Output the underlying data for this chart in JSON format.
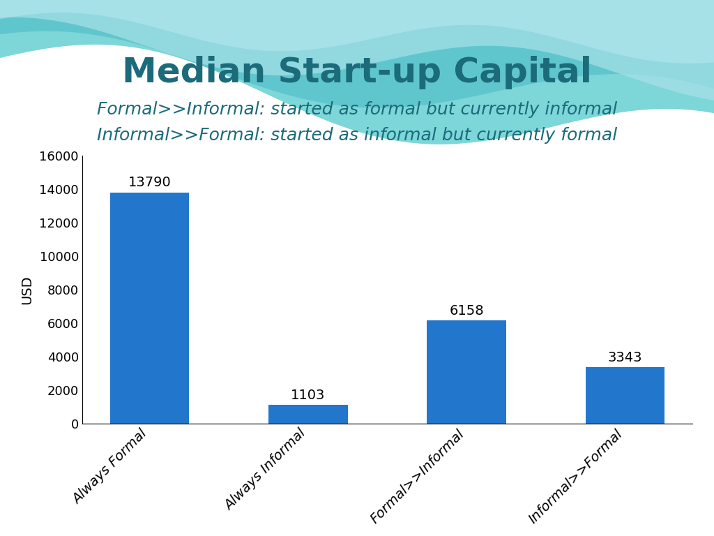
{
  "title": "Median Start-up Capital",
  "subtitle_line1_bold": "Formal>>Informal",
  "subtitle_line1_rest": ": started as formal but currently informal",
  "subtitle_line2_bold": "Informal>>Formal",
  "subtitle_line2_rest": ": started as informal but currently formal",
  "categories": [
    "Always Formal",
    "Always Informal",
    "Formal>>Informal",
    "Informal>>Formal"
  ],
  "values": [
    13790,
    1103,
    6158,
    3343
  ],
  "bar_color": "#2277CC",
  "ylabel": "USD",
  "ylim": [
    0,
    16000
  ],
  "yticks": [
    0,
    2000,
    4000,
    6000,
    8000,
    10000,
    12000,
    14000,
    16000
  ],
  "title_color": "#1B6B7B",
  "subtitle_color": "#1B6B7B",
  "background_color": "#FFFFFF",
  "title_fontsize": 36,
  "subtitle_fontsize": 18,
  "value_label_fontsize": 14,
  "ylabel_fontsize": 14,
  "ytick_fontsize": 13,
  "xtick_fontsize": 14,
  "wave_color1": "#7DD6D8",
  "wave_color2": "#5BC4CC",
  "wave_color3": "#A8E0E8",
  "wave_color4": "#B8EAF0"
}
